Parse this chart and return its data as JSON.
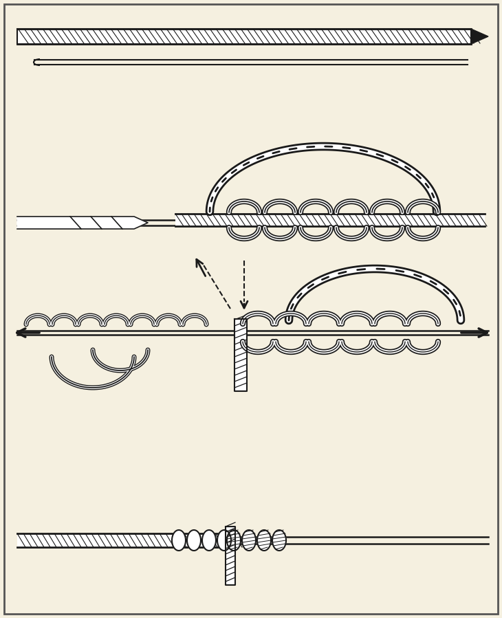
{
  "bg_color": "#f5f0e0",
  "line_color": "#1a1a1a",
  "fig_width": 7.3,
  "fig_height": 8.99
}
